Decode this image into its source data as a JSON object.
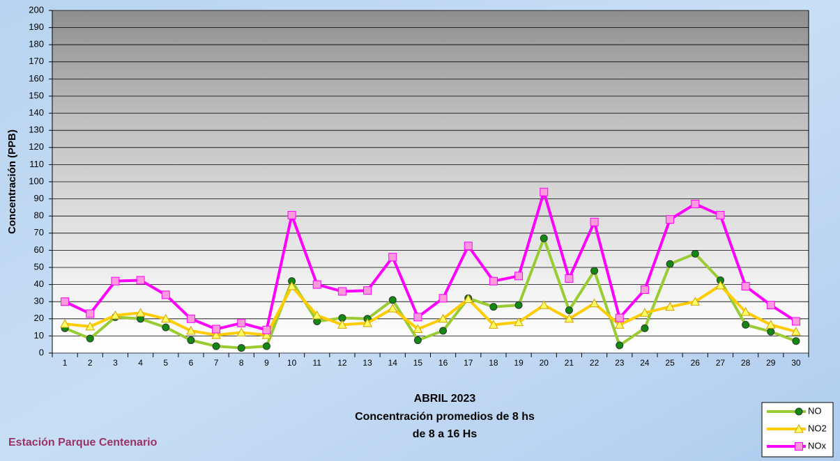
{
  "chart_data": {
    "type": "line",
    "y_label": "Concentración (PPB)",
    "title_lines": [
      "ABRIL 2023",
      "Concentración promedios de 8 hs",
      "de 8 a 16 Hs"
    ],
    "station": "Estación Parque Centenario",
    "categories": [
      "1",
      "2",
      "3",
      "4",
      "5",
      "6",
      "7",
      "8",
      "9",
      "10",
      "11",
      "12",
      "13",
      "14",
      "15",
      "16",
      "17",
      "18",
      "19",
      "20",
      "21",
      "22",
      "23",
      "24",
      "25",
      "26",
      "27",
      "28",
      "29",
      "30"
    ],
    "series": [
      {
        "name": "NO",
        "color": "#99cc33",
        "marker_color": "#118811",
        "marker": "circle",
        "values": [
          14.5,
          8.5,
          21,
          20,
          15,
          7.5,
          4,
          3,
          4,
          42,
          18.5,
          20.5,
          20,
          31,
          7.5,
          13,
          32,
          27,
          28,
          67,
          25,
          48,
          4.5,
          14.5,
          52,
          58,
          42.5,
          16.5,
          12.5,
          7
        ]
      },
      {
        "name": "NO2",
        "color": "#ffcc00",
        "marker_color": "#ffff66",
        "marker": "triangle",
        "values": [
          17,
          15.5,
          22,
          23.5,
          20,
          13,
          10.5,
          12,
          10.5,
          39,
          22,
          16.5,
          17.5,
          26,
          14,
          20,
          31.5,
          16.5,
          18,
          28,
          20,
          29,
          16.5,
          23.5,
          27,
          30,
          39.5,
          24,
          16.5,
          12.5
        ]
      },
      {
        "name": "NOx",
        "color": "#ff00ff",
        "marker_color": "#ff99dd",
        "marker": "square",
        "values": [
          30,
          23,
          42,
          42.5,
          34,
          20,
          14,
          17.5,
          13.5,
          80.5,
          40,
          36,
          36.5,
          56,
          21,
          32,
          62.5,
          42,
          45,
          94,
          43.5,
          76.5,
          20.5,
          37,
          78,
          87,
          80.5,
          39,
          28,
          18.5
        ]
      }
    ],
    "ylim": [
      0,
      200
    ],
    "yticks": [
      0,
      10,
      20,
      30,
      40,
      50,
      60,
      70,
      80,
      90,
      100,
      110,
      120,
      130,
      140,
      150,
      160,
      170,
      180,
      190,
      200
    ],
    "grid": true,
    "legend": "lower right"
  }
}
